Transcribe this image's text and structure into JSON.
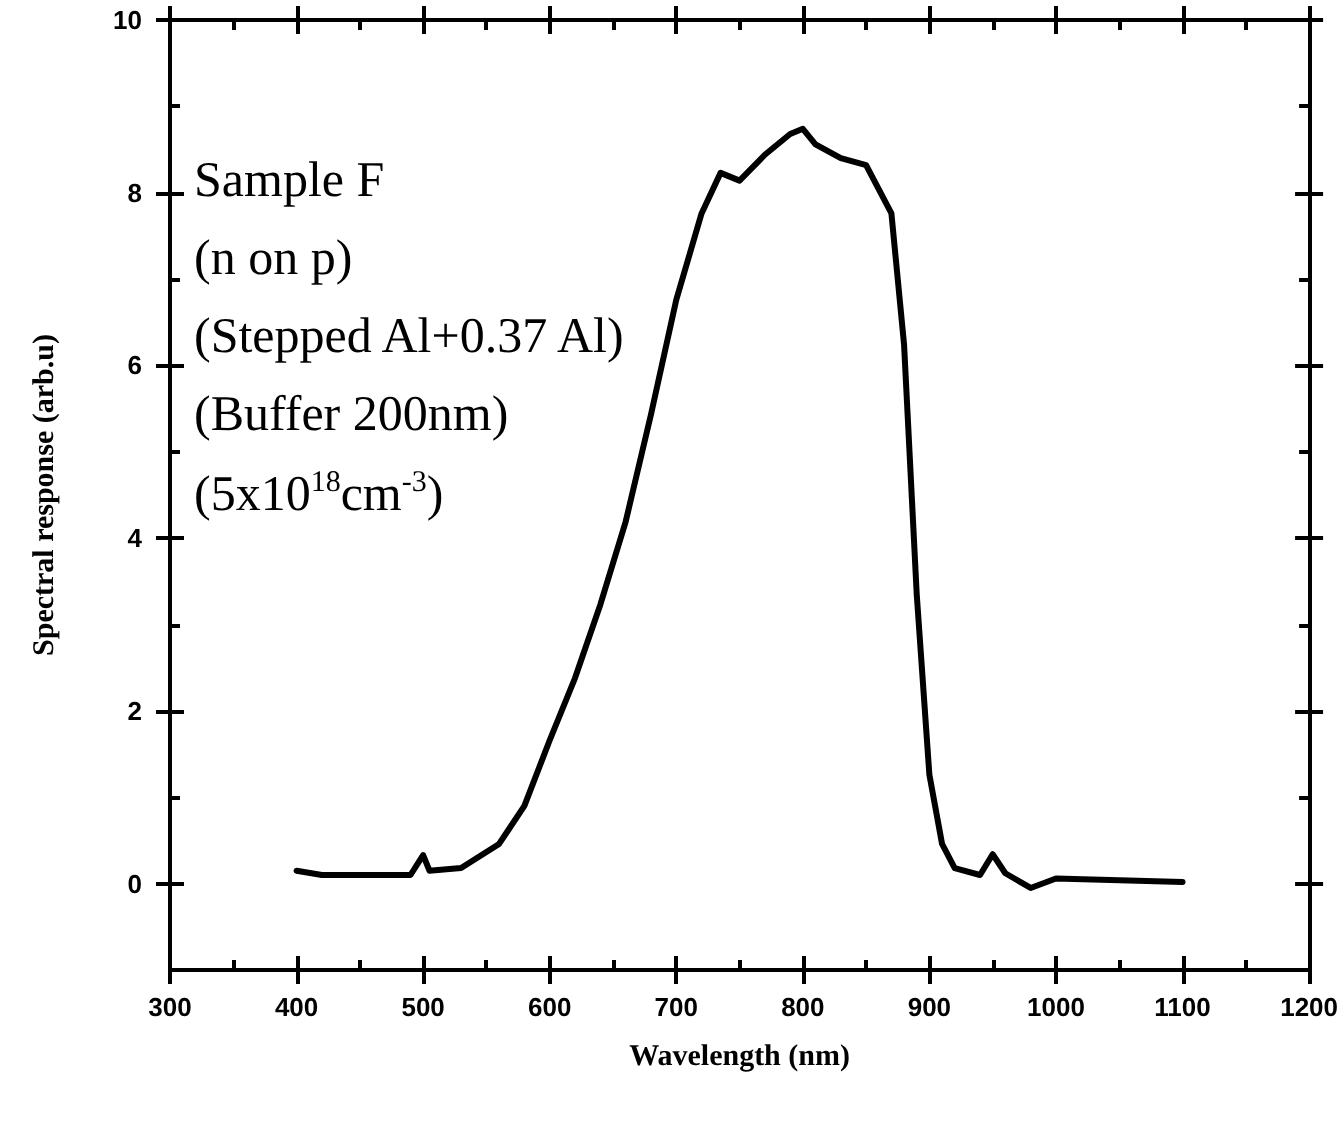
{
  "chart_data": {
    "type": "line",
    "xlabel": "Wavelength (nm)",
    "ylabel": "Spectral response (arb.u)",
    "annotations": [
      "Sample F",
      "(n on p)",
      "(Stepped Al+0.37 Al)",
      "(Buffer 200nm)",
      "(5x10$^{18}$cm$^{-3}$)"
    ],
    "x": [
      400,
      420,
      450,
      490,
      500,
      505,
      530,
      560,
      580,
      600,
      620,
      640,
      660,
      680,
      700,
      720,
      735,
      750,
      770,
      790,
      800,
      810,
      830,
      850,
      870,
      880,
      890,
      900,
      910,
      920,
      940,
      950,
      960,
      980,
      1000,
      1050,
      1100
    ],
    "series": [
      {
        "color": "#000000",
        "values": [
          0.15,
          0.1,
          0.1,
          0.1,
          0.33,
          0.15,
          0.18,
          0.46,
          0.9,
          1.66,
          2.38,
          3.23,
          4.19,
          5.43,
          6.76,
          7.76,
          8.23,
          8.14,
          8.44,
          8.68,
          8.74,
          8.56,
          8.4,
          8.32,
          7.76,
          6.24,
          3.35,
          1.26,
          0.46,
          0.18,
          0.1,
          0.34,
          0.12,
          -0.05,
          0.06,
          0.04,
          0.02
        ]
      }
    ],
    "xlim": [
      300,
      1200
    ],
    "xticks": [
      300,
      400,
      500,
      600,
      700,
      800,
      900,
      1000,
      1100,
      1200
    ],
    "ylim": [
      -1,
      10
    ],
    "yticks": [
      0,
      2,
      4,
      6,
      8,
      10
    ],
    "marker": "none",
    "line_style": "solid"
  }
}
